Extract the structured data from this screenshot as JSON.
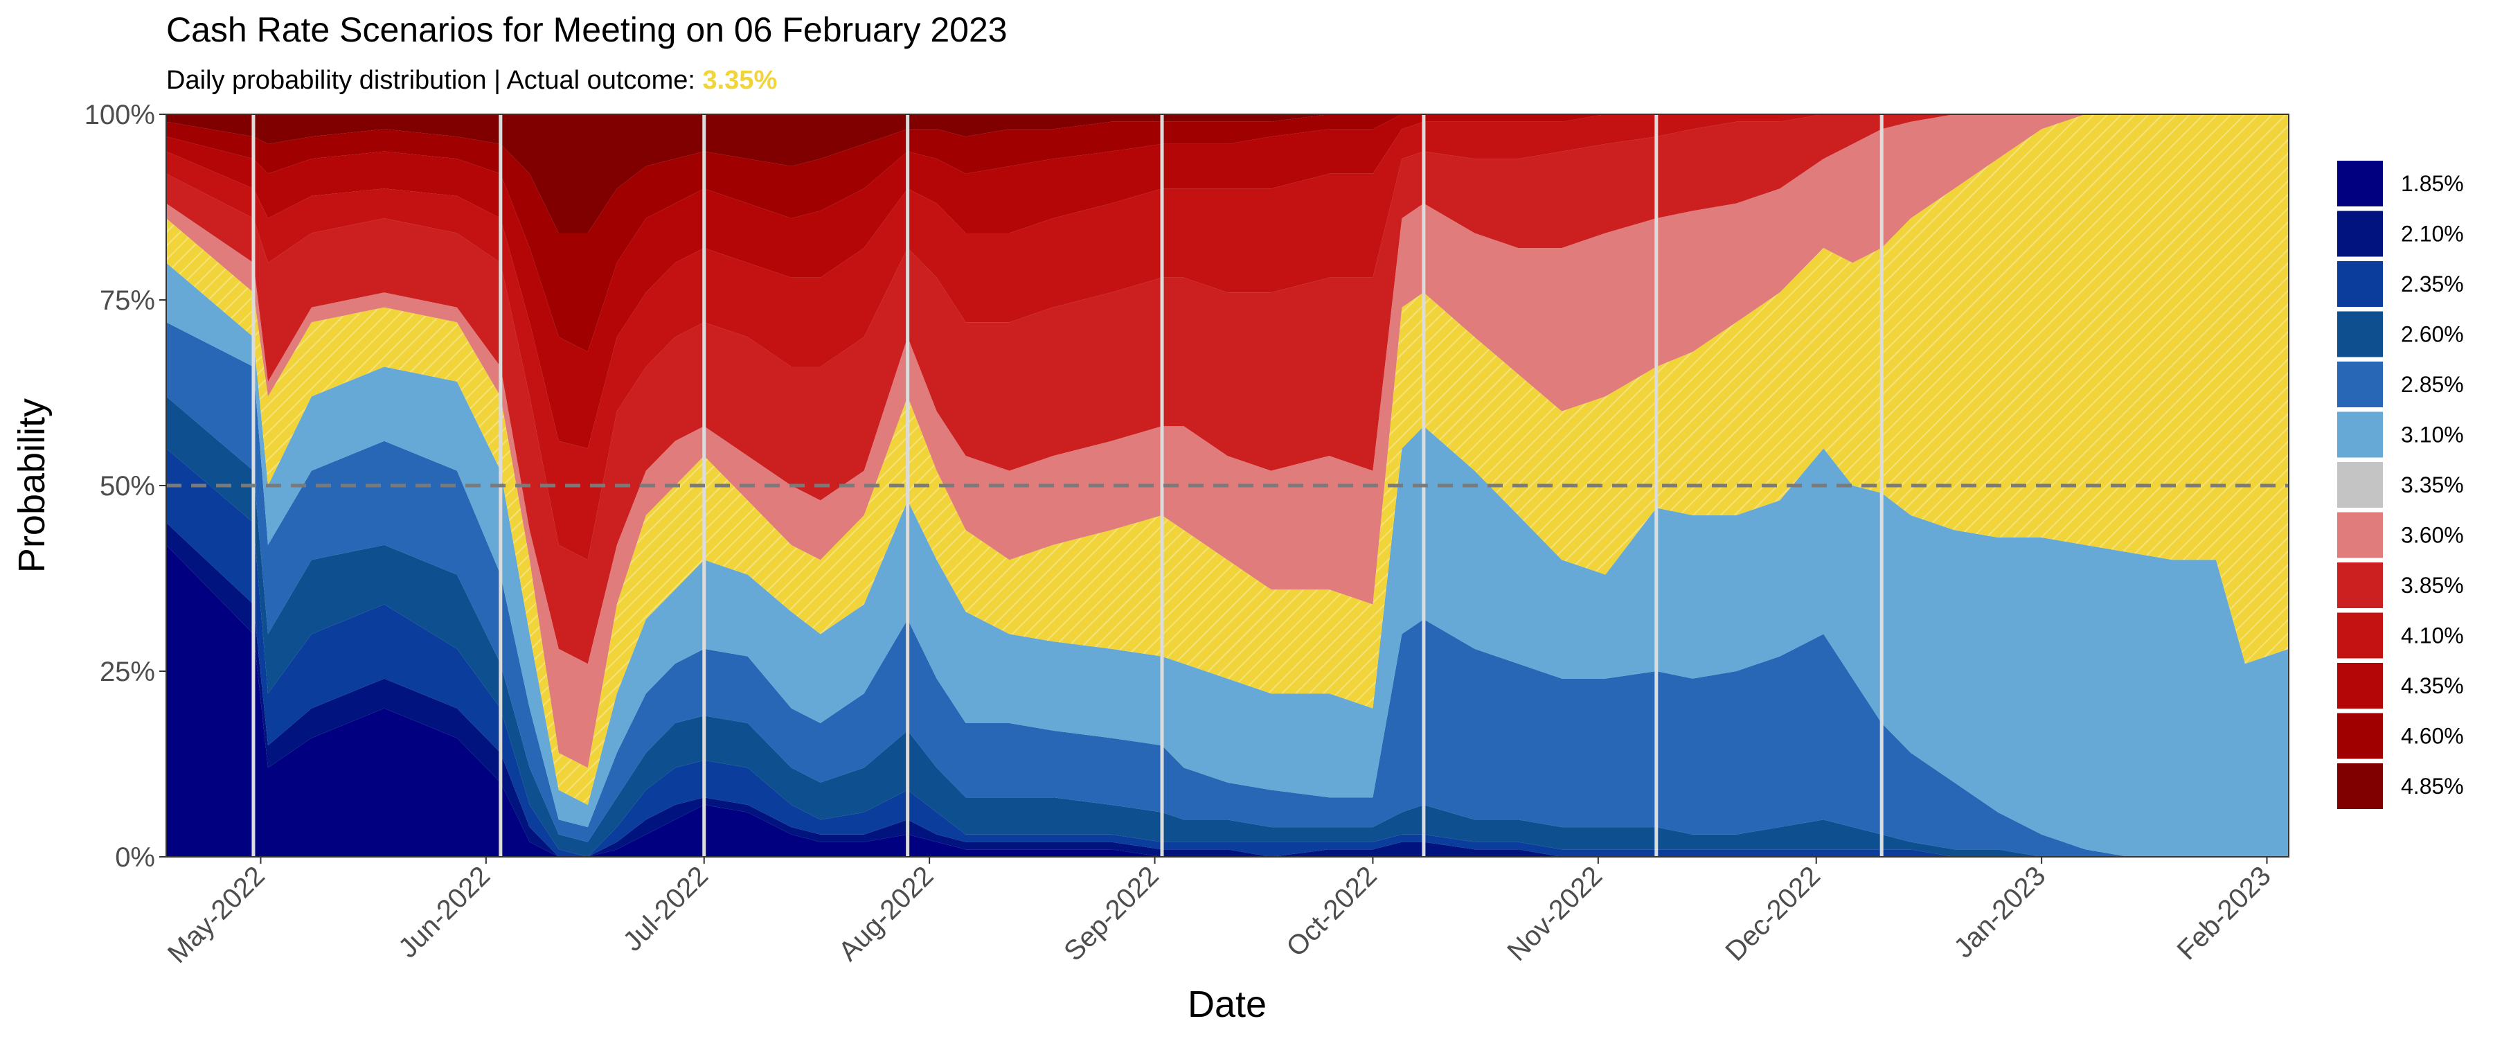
{
  "chart_data": {
    "type": "area",
    "title": "Cash Rate Scenarios for Meeting on 06 February 2023",
    "subtitle_prefix": "Daily probability distribution | Actual outcome: ",
    "subtitle_highlight": "3.35%",
    "xlabel": "Date",
    "ylabel": "Probability",
    "ylim": [
      0,
      1
    ],
    "x_ticks": [
      {
        "label": "May-2022",
        "day": 13
      },
      {
        "label": "Jun-2022",
        "day": 44
      },
      {
        "label": "Jul-2022",
        "day": 74
      },
      {
        "label": "Aug-2022",
        "day": 105
      },
      {
        "label": "Sep-2022",
        "day": 136
      },
      {
        "label": "Oct-2022",
        "day": 166
      },
      {
        "label": "Nov-2022",
        "day": 197
      },
      {
        "label": "Dec-2022",
        "day": 227
      },
      {
        "label": "Jan-2023",
        "day": 258
      },
      {
        "label": "Feb-2023",
        "day": 289
      }
    ],
    "y_ticks": [
      {
        "label": "0%",
        "value": 0
      },
      {
        "label": "25%",
        "value": 0.25
      },
      {
        "label": "50%",
        "value": 0.5
      },
      {
        "label": "75%",
        "value": 0.75
      },
      {
        "label": "100%",
        "value": 1
      }
    ],
    "x_range_days": [
      0,
      292
    ],
    "reference_line": 0.5,
    "meeting_marker_days": [
      12,
      46,
      74,
      102,
      137,
      173,
      205,
      236
    ],
    "legend_position": "right",
    "highlight_color": "#f0d43a",
    "series": [
      {
        "name": "1.85%",
        "color": "#000080"
      },
      {
        "name": "2.10%",
        "color": "#00137f"
      },
      {
        "name": "2.35%",
        "color": "#0b3d9c"
      },
      {
        "name": "2.60%",
        "color": "#0d4f8f"
      },
      {
        "name": "2.85%",
        "color": "#2767b6"
      },
      {
        "name": "3.10%",
        "color": "#66a9d6"
      },
      {
        "name": "3.35%",
        "color": "#c4c4c4"
      },
      {
        "name": "3.60%",
        "color": "#e07c7c"
      },
      {
        "name": "3.85%",
        "color": "#cc1f1f"
      },
      {
        "name": "4.10%",
        "color": "#c41212"
      },
      {
        "name": "4.35%",
        "color": "#b40606"
      },
      {
        "name": "4.60%",
        "color": "#a00000"
      },
      {
        "name": "4.85%",
        "color": "#800000"
      }
    ],
    "stacked_cumulative_upper": {
      "note": "cumulative upper bounds (probability) for stacked bands, bands ordered low rate to high rate",
      "days": [
        0,
        12,
        14,
        20,
        30,
        40,
        46,
        50,
        54,
        58,
        62,
        66,
        70,
        74,
        80,
        86,
        90,
        96,
        102,
        106,
        110,
        116,
        122,
        130,
        137,
        140,
        146,
        152,
        160,
        166,
        170,
        173,
        180,
        186,
        192,
        198,
        205,
        210,
        216,
        222,
        228,
        232,
        236,
        240,
        246,
        252,
        258,
        264,
        270,
        276,
        282,
        286,
        292
      ],
      "bands": [
        {
          "name": "1.85%",
          "upper": [
            0.42,
            0.3,
            0.12,
            0.16,
            0.2,
            0.16,
            0.1,
            0.02,
            0.0,
            0.0,
            0.01,
            0.03,
            0.05,
            0.07,
            0.06,
            0.03,
            0.02,
            0.02,
            0.03,
            0.02,
            0.01,
            0.01,
            0.01,
            0.01,
            0.0,
            0.0,
            0.0,
            0.0,
            0.0,
            0.0,
            0.0,
            0.0,
            0.0,
            0.0,
            0.0,
            0.0,
            0.0,
            0.0,
            0.0,
            0.0,
            0.0,
            0.0,
            0.0,
            0.0,
            0.0,
            0.0,
            0.0,
            0.0,
            0.0,
            0.0,
            0.0,
            0.0,
            0.0
          ]
        },
        {
          "name": "2.10%",
          "upper": [
            0.45,
            0.34,
            0.15,
            0.2,
            0.24,
            0.2,
            0.14,
            0.04,
            0.0,
            0.0,
            0.02,
            0.05,
            0.07,
            0.08,
            0.07,
            0.04,
            0.03,
            0.03,
            0.05,
            0.03,
            0.02,
            0.02,
            0.02,
            0.02,
            0.01,
            0.01,
            0.01,
            0.0,
            0.01,
            0.01,
            0.02,
            0.02,
            0.01,
            0.01,
            0.0,
            0.0,
            0.0,
            0.0,
            0.0,
            0.0,
            0.0,
            0.0,
            0.0,
            0.0,
            0.0,
            0.0,
            0.0,
            0.0,
            0.0,
            0.0,
            0.0,
            0.0,
            0.0
          ]
        },
        {
          "name": "2.35%",
          "upper": [
            0.55,
            0.45,
            0.22,
            0.3,
            0.34,
            0.28,
            0.2,
            0.07,
            0.01,
            0.0,
            0.04,
            0.09,
            0.12,
            0.13,
            0.12,
            0.07,
            0.05,
            0.06,
            0.09,
            0.06,
            0.03,
            0.03,
            0.03,
            0.03,
            0.02,
            0.02,
            0.02,
            0.02,
            0.02,
            0.02,
            0.03,
            0.03,
            0.02,
            0.02,
            0.01,
            0.01,
            0.01,
            0.01,
            0.01,
            0.01,
            0.01,
            0.01,
            0.01,
            0.01,
            0.0,
            0.0,
            0.0,
            0.0,
            0.0,
            0.0,
            0.0,
            0.0,
            0.0
          ]
        },
        {
          "name": "2.60%",
          "upper": [
            0.62,
            0.52,
            0.3,
            0.4,
            0.42,
            0.38,
            0.26,
            0.12,
            0.03,
            0.02,
            0.08,
            0.14,
            0.18,
            0.19,
            0.18,
            0.12,
            0.1,
            0.12,
            0.17,
            0.12,
            0.08,
            0.08,
            0.08,
            0.07,
            0.06,
            0.05,
            0.05,
            0.04,
            0.04,
            0.04,
            0.06,
            0.07,
            0.05,
            0.05,
            0.04,
            0.04,
            0.04,
            0.03,
            0.03,
            0.04,
            0.05,
            0.04,
            0.03,
            0.02,
            0.01,
            0.01,
            0.0,
            0.0,
            0.0,
            0.0,
            0.0,
            0.0,
            0.0
          ]
        },
        {
          "name": "2.85%",
          "upper": [
            0.72,
            0.66,
            0.42,
            0.52,
            0.56,
            0.52,
            0.38,
            0.2,
            0.05,
            0.04,
            0.14,
            0.22,
            0.26,
            0.28,
            0.27,
            0.2,
            0.18,
            0.22,
            0.32,
            0.24,
            0.18,
            0.18,
            0.17,
            0.16,
            0.15,
            0.12,
            0.1,
            0.09,
            0.08,
            0.08,
            0.3,
            0.32,
            0.28,
            0.26,
            0.24,
            0.24,
            0.25,
            0.24,
            0.25,
            0.27,
            0.3,
            0.24,
            0.18,
            0.14,
            0.1,
            0.06,
            0.03,
            0.01,
            0.0,
            0.0,
            0.0,
            0.0,
            0.0
          ]
        },
        {
          "name": "3.10%",
          "upper": [
            0.8,
            0.7,
            0.5,
            0.62,
            0.66,
            0.64,
            0.52,
            0.3,
            0.09,
            0.07,
            0.22,
            0.32,
            0.36,
            0.4,
            0.38,
            0.33,
            0.3,
            0.34,
            0.48,
            0.4,
            0.33,
            0.3,
            0.29,
            0.28,
            0.27,
            0.26,
            0.24,
            0.22,
            0.22,
            0.2,
            0.55,
            0.58,
            0.52,
            0.46,
            0.4,
            0.38,
            0.47,
            0.46,
            0.46,
            0.48,
            0.55,
            0.5,
            0.49,
            0.46,
            0.44,
            0.43,
            0.43,
            0.42,
            0.41,
            0.4,
            0.4,
            0.26,
            0.28
          ]
        },
        {
          "name": "3.35%",
          "upper": [
            0.86,
            0.76,
            0.62,
            0.72,
            0.74,
            0.72,
            0.62,
            0.4,
            0.14,
            0.12,
            0.34,
            0.46,
            0.5,
            0.54,
            0.48,
            0.42,
            0.4,
            0.46,
            0.62,
            0.52,
            0.44,
            0.4,
            0.42,
            0.44,
            0.46,
            0.44,
            0.4,
            0.36,
            0.36,
            0.34,
            0.74,
            0.76,
            0.7,
            0.65,
            0.6,
            0.62,
            0.66,
            0.68,
            0.72,
            0.76,
            0.82,
            0.8,
            0.82,
            0.86,
            0.9,
            0.94,
            0.98,
            1.0,
            1.0,
            1.0,
            1.0,
            1.0,
            1.0
          ]
        },
        {
          "name": "3.60%",
          "upper": [
            0.88,
            0.8,
            0.64,
            0.74,
            0.76,
            0.74,
            0.66,
            0.44,
            0.28,
            0.26,
            0.42,
            0.52,
            0.56,
            0.58,
            0.54,
            0.5,
            0.48,
            0.52,
            0.7,
            0.6,
            0.54,
            0.52,
            0.54,
            0.56,
            0.58,
            0.58,
            0.54,
            0.52,
            0.54,
            0.52,
            0.86,
            0.88,
            0.84,
            0.82,
            0.82,
            0.84,
            0.86,
            0.87,
            0.88,
            0.9,
            0.94,
            0.96,
            0.98,
            0.99,
            1.0,
            1.0,
            1.0,
            1.0,
            1.0,
            1.0,
            1.0,
            1.0,
            1.0
          ]
        },
        {
          "name": "3.85%",
          "upper": [
            0.92,
            0.86,
            0.8,
            0.84,
            0.86,
            0.84,
            0.8,
            0.62,
            0.42,
            0.4,
            0.6,
            0.66,
            0.7,
            0.72,
            0.7,
            0.66,
            0.66,
            0.7,
            0.82,
            0.78,
            0.72,
            0.72,
            0.74,
            0.76,
            0.78,
            0.78,
            0.76,
            0.76,
            0.78,
            0.78,
            0.94,
            0.95,
            0.94,
            0.94,
            0.95,
            0.96,
            0.97,
            0.98,
            0.99,
            0.99,
            1.0,
            1.0,
            1.0,
            1.0,
            1.0,
            1.0,
            1.0,
            1.0,
            1.0,
            1.0,
            1.0,
            1.0,
            1.0
          ]
        },
        {
          "name": "4.10%",
          "upper": [
            0.95,
            0.9,
            0.86,
            0.89,
            0.9,
            0.89,
            0.86,
            0.72,
            0.56,
            0.55,
            0.7,
            0.76,
            0.8,
            0.82,
            0.8,
            0.78,
            0.78,
            0.82,
            0.9,
            0.88,
            0.84,
            0.84,
            0.86,
            0.88,
            0.9,
            0.9,
            0.9,
            0.9,
            0.92,
            0.92,
            0.98,
            0.99,
            0.99,
            0.99,
            0.99,
            1.0,
            1.0,
            1.0,
            1.0,
            1.0,
            1.0,
            1.0,
            1.0,
            1.0,
            1.0,
            1.0,
            1.0,
            1.0,
            1.0,
            1.0,
            1.0,
            1.0,
            1.0
          ]
        },
        {
          "name": "4.35%",
          "upper": [
            0.97,
            0.94,
            0.92,
            0.94,
            0.95,
            0.94,
            0.92,
            0.82,
            0.7,
            0.68,
            0.8,
            0.86,
            0.88,
            0.9,
            0.88,
            0.86,
            0.87,
            0.9,
            0.95,
            0.94,
            0.92,
            0.93,
            0.94,
            0.95,
            0.96,
            0.96,
            0.96,
            0.97,
            0.98,
            0.98,
            1.0,
            1.0,
            1.0,
            1.0,
            1.0,
            1.0,
            1.0,
            1.0,
            1.0,
            1.0,
            1.0,
            1.0,
            1.0,
            1.0,
            1.0,
            1.0,
            1.0,
            1.0,
            1.0,
            1.0,
            1.0,
            1.0,
            1.0
          ]
        },
        {
          "name": "4.60%",
          "upper": [
            0.99,
            0.97,
            0.96,
            0.97,
            0.98,
            0.97,
            0.96,
            0.92,
            0.84,
            0.84,
            0.9,
            0.93,
            0.94,
            0.95,
            0.94,
            0.93,
            0.94,
            0.96,
            0.98,
            0.98,
            0.97,
            0.98,
            0.98,
            0.99,
            0.99,
            0.99,
            0.99,
            0.99,
            1.0,
            1.0,
            1.0,
            1.0,
            1.0,
            1.0,
            1.0,
            1.0,
            1.0,
            1.0,
            1.0,
            1.0,
            1.0,
            1.0,
            1.0,
            1.0,
            1.0,
            1.0,
            1.0,
            1.0,
            1.0,
            1.0,
            1.0,
            1.0,
            1.0
          ]
        },
        {
          "name": "4.85%",
          "upper": [
            1.0,
            1.0,
            1.0,
            1.0,
            1.0,
            1.0,
            1.0,
            1.0,
            1.0,
            1.0,
            1.0,
            1.0,
            1.0,
            1.0,
            1.0,
            1.0,
            1.0,
            1.0,
            1.0,
            1.0,
            1.0,
            1.0,
            1.0,
            1.0,
            1.0,
            1.0,
            1.0,
            1.0,
            1.0,
            1.0,
            1.0,
            1.0,
            1.0,
            1.0,
            1.0,
            1.0,
            1.0,
            1.0,
            1.0,
            1.0,
            1.0,
            1.0,
            1.0,
            1.0,
            1.0,
            1.0,
            1.0,
            1.0,
            1.0,
            1.0,
            1.0,
            1.0,
            1.0
          ]
        }
      ]
    }
  }
}
